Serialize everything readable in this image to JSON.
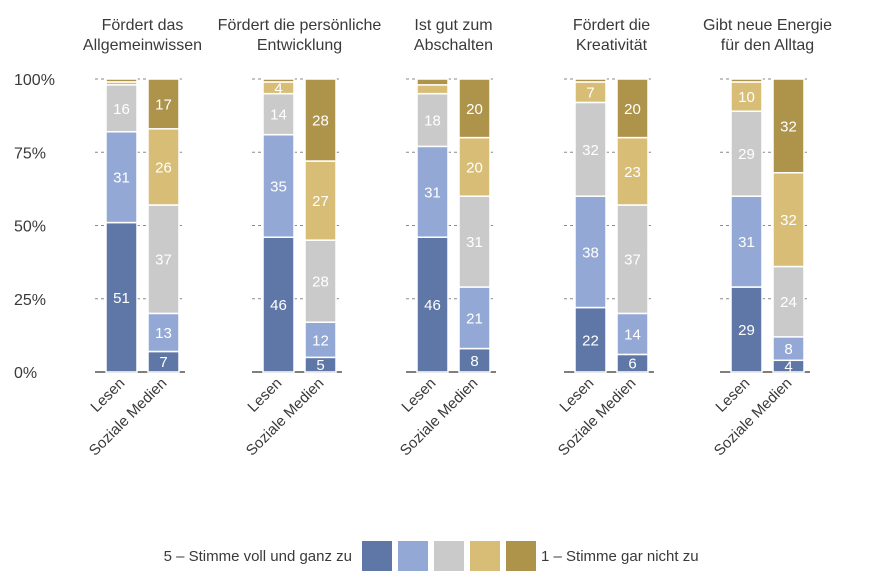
{
  "chart_data": {
    "type": "bar",
    "stacked": true,
    "percent": true,
    "ylim": [
      0,
      100
    ],
    "yticks": [
      "0%",
      "25%",
      "50%",
      "75%",
      "100%"
    ],
    "series_names": [
      "5 – Stimme voll und ganz zu",
      "4",
      "3",
      "2",
      "1 – Stimme gar nicht zu"
    ],
    "colors": {
      "Lesen": [
        "#5f77a6",
        "#94a8d5",
        "#cacaca",
        "#d8bd77",
        "#ae934b"
      ],
      "Soziale Medien": [
        "#5f77a6",
        "#94a8d5",
        "#cacaca",
        "#d8bd77",
        "#ae934b"
      ]
    },
    "groups": [
      {
        "title": [
          "Fördert das",
          "Allgemeinwissen"
        ],
        "bars": [
          {
            "label": "Lesen",
            "values": [
              51,
              31,
              16,
              1,
              1
            ]
          },
          {
            "label": "Soziale Medien",
            "values": [
              7,
              13,
              37,
              26,
              17
            ]
          }
        ]
      },
      {
        "title": [
          "Fördert die persönliche",
          "Entwicklung"
        ],
        "bars": [
          {
            "label": "Lesen",
            "values": [
              46,
              35,
              14,
              4,
              1
            ]
          },
          {
            "label": "Soziale Medien",
            "values": [
              5,
              12,
              28,
              27,
              28
            ]
          }
        ]
      },
      {
        "title": [
          "Ist gut zum",
          "Abschalten"
        ],
        "bars": [
          {
            "label": "Lesen",
            "values": [
              46,
              31,
              18,
              3,
              2
            ]
          },
          {
            "label": "Soziale Medien",
            "values": [
              8,
              21,
              31,
              20,
              20
            ]
          }
        ]
      },
      {
        "title": [
          "Fördert die",
          "Kreativität"
        ],
        "bars": [
          {
            "label": "Lesen",
            "values": [
              22,
              38,
              32,
              7,
              1
            ]
          },
          {
            "label": "Soziale Medien",
            "values": [
              6,
              14,
              37,
              23,
              20
            ]
          }
        ]
      },
      {
        "title": [
          "Gibt neue Energie",
          "für den Alltag"
        ],
        "bars": [
          {
            "label": "Lesen",
            "values": [
              29,
              31,
              29,
              10,
              1
            ]
          },
          {
            "label": "Soziale Medien",
            "values": [
              4,
              8,
              24,
              32,
              32
            ]
          }
        ]
      }
    ],
    "legend": {
      "left_label": "5 – Stimme voll und ganz zu",
      "right_label": "1 – Stimme gar nicht zu",
      "swatches": [
        "#5f77a6",
        "#94a8d5",
        "#cacaca",
        "#d8bd77",
        "#ae934b"
      ]
    },
    "label_min_value": 4
  }
}
